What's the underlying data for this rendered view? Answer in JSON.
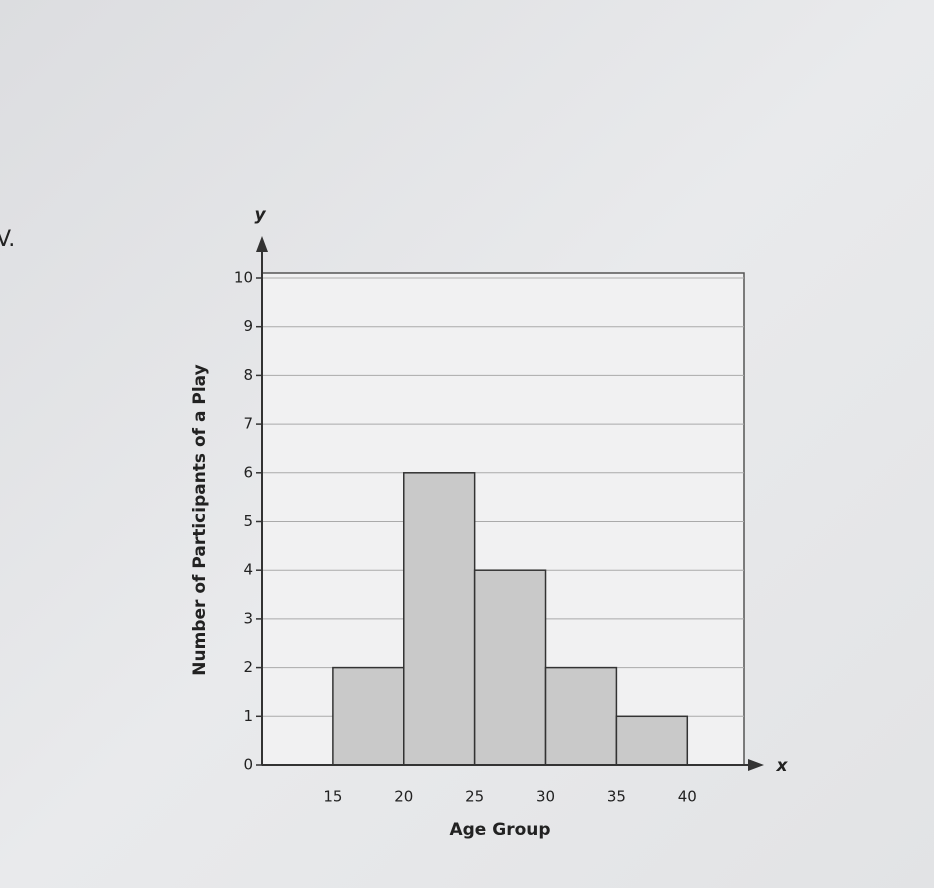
{
  "chart_data": {
    "type": "histogram",
    "annotation": "V.",
    "y_label": "Number of Participants of a Play",
    "x_label": "Age Group",
    "y_axis_symbol": "y",
    "x_axis_symbol": "x",
    "bins": [
      15,
      20,
      25,
      30,
      35,
      40
    ],
    "values": [
      2,
      6,
      4,
      2,
      1
    ],
    "color": "#c9c9c9",
    "xlim": [
      10,
      44
    ],
    "ylim": [
      0,
      10
    ],
    "xticks": [
      15,
      20,
      25,
      30,
      35,
      40
    ],
    "yticks": [
      0,
      1,
      2,
      3,
      4,
      5,
      6,
      7,
      8,
      9,
      10
    ],
    "grid": true
  }
}
